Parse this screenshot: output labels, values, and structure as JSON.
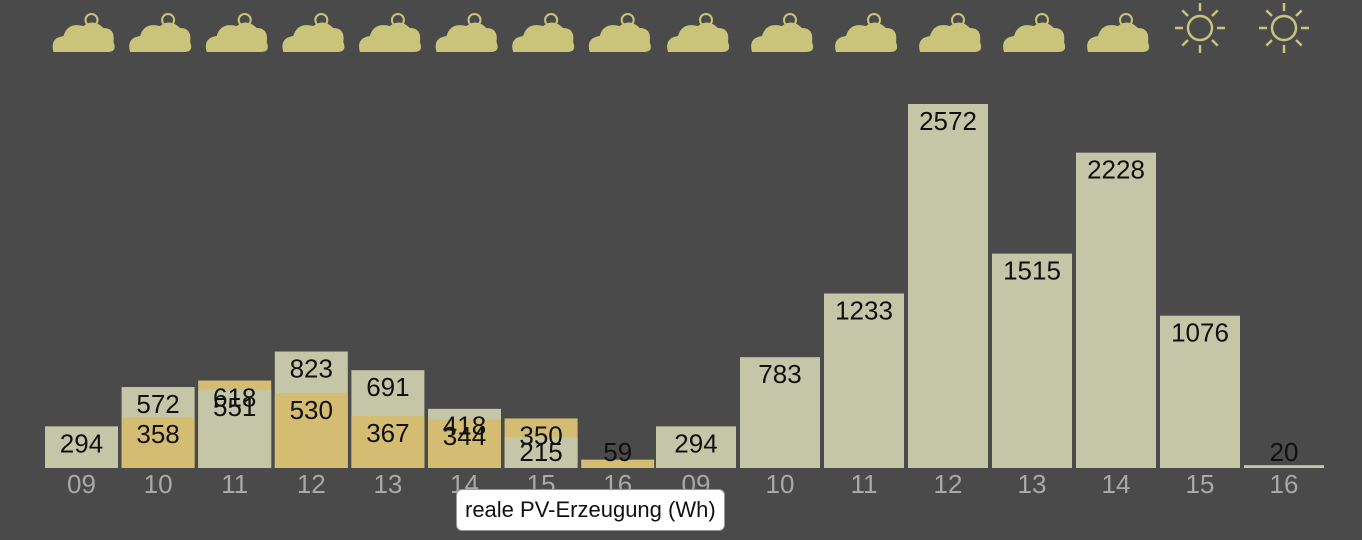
{
  "chart_data": {
    "type": "bar",
    "categories": [
      "09",
      "10",
      "11",
      "12",
      "13",
      "14",
      "15",
      "16",
      "09",
      "10",
      "11",
      "12",
      "13",
      "14",
      "15",
      "16"
    ],
    "series": [
      {
        "color": "#c5c6a8",
        "values": [
          294,
          572,
          551,
          823,
          691,
          418,
          215,
          null,
          294,
          783,
          1233,
          2572,
          1515,
          2228,
          1076,
          20
        ]
      },
      {
        "name": "reale PV-Erzeugung (Wh)",
        "color": "#d4bd72",
        "values": [
          null,
          358,
          618,
          530,
          367,
          344,
          350,
          59,
          null,
          null,
          null,
          null,
          null,
          null,
          null,
          null
        ]
      }
    ],
    "ylim": [
      0,
      2572
    ]
  }
}
